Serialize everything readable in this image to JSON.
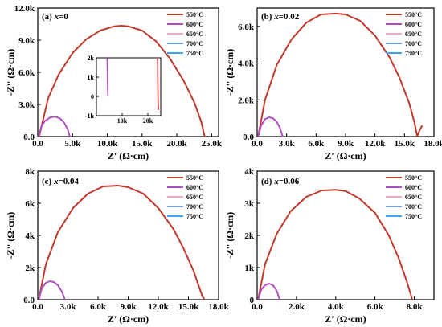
{
  "chart_data": [
    {
      "type": "line",
      "panel_label": "(a)",
      "panel_var": "x",
      "panel_eq": "=0",
      "xlabel": "Z' (Ω·cm)",
      "ylabel": "-Z'' (Ω·cm)",
      "xlim": [
        0,
        26000
      ],
      "ylim": [
        0,
        12000
      ],
      "x_ticks": [
        0,
        5000,
        10000,
        15000,
        20000,
        25000
      ],
      "x_tick_labels": [
        "0.0",
        "5.0k",
        "10.0k",
        "15.0k",
        "20.0k",
        "25.0k"
      ],
      "y_ticks": [
        0,
        3000,
        6000,
        9000,
        12000
      ],
      "y_tick_labels": [
        "0.0",
        "3.0k",
        "6.0k",
        "9.0k",
        "12.0k"
      ],
      "legend_position": "top-right",
      "series": [
        {
          "name": "550°C",
          "color": "#c0392b",
          "x": [
            200,
            1500,
            3000,
            5000,
            7000,
            9000,
            11000,
            12000,
            13000,
            15000,
            17000,
            19000,
            21000,
            22500,
            23500,
            24000
          ],
          "y": [
            0,
            3600,
            5800,
            7800,
            9100,
            9900,
            10300,
            10350,
            10300,
            9900,
            8900,
            7300,
            5200,
            3200,
            1400,
            0
          ]
        },
        {
          "name": "600°C",
          "color": "#b04fc4",
          "x": [
            100,
            500,
            1000,
            1800,
            2500,
            3200,
            3800,
            4300,
            4600
          ],
          "y": [
            0,
            900,
            1450,
            1800,
            1850,
            1700,
            1300,
            700,
            0
          ]
        },
        {
          "name": "650°C",
          "color": "#f4a6c8",
          "x": [],
          "y": []
        },
        {
          "name": "700°C",
          "color": "#6aa0e0",
          "x": [],
          "y": []
        },
        {
          "name": "750°C",
          "color": "#3aa8f0",
          "x": [],
          "y": []
        }
      ],
      "inset": {
        "xlim": [
          0,
          25000
        ],
        "ylim": [
          -1000,
          2000
        ],
        "x_ticks": [
          10000,
          20000
        ],
        "x_tick_labels": [
          "10k",
          "20k"
        ],
        "y_ticks": [
          -1000,
          0,
          1000,
          2000
        ],
        "y_tick_labels": [
          "-1k",
          "0",
          "1k",
          "2k"
        ],
        "series": [
          {
            "name": "600°C",
            "color": "#b04fc4",
            "x": [
              4200,
              4300,
              4400,
              4500
            ],
            "y": [
              2000,
              900,
              300,
              0
            ]
          },
          {
            "name": "550°C",
            "color": "#c0392b",
            "x": [
              23800,
              23850,
              23900,
              23950,
              24000,
              24100
            ],
            "y": [
              2000,
              1200,
              500,
              0,
              -400,
              -700
            ]
          }
        ]
      }
    },
    {
      "type": "line",
      "panel_label": "(b)",
      "panel_var": "x",
      "panel_eq": "=0.02",
      "xlabel": "Z' (Ω·cm)",
      "ylabel": "-Z'' (Ω·cm)",
      "xlim": [
        0,
        18000
      ],
      "ylim": [
        0,
        7000
      ],
      "x_ticks": [
        0,
        3000,
        6000,
        9000,
        12000,
        15000,
        18000
      ],
      "x_tick_labels": [
        "0.0",
        "3.0k",
        "6.0k",
        "9.0k",
        "12.0k",
        "15.0k",
        "18.0k"
      ],
      "y_ticks": [
        0,
        2000,
        4000,
        6000
      ],
      "y_tick_labels": [
        "0.0",
        "2.0k",
        "4.0k",
        "6.0k"
      ],
      "legend_position": "top-right",
      "series": [
        {
          "name": "550°C",
          "color": "#c0392b",
          "x": [
            100,
            800,
            2000,
            3500,
            5000,
            6500,
            8000,
            9000,
            10500,
            12000,
            13500,
            14500,
            15500,
            16000,
            16300,
            16500,
            16800
          ],
          "y": [
            0,
            2000,
            3900,
            5300,
            6200,
            6650,
            6700,
            6650,
            6300,
            5500,
            4300,
            3200,
            1800,
            800,
            0,
            300,
            600
          ]
        },
        {
          "name": "600°C",
          "color": "#b04fc4",
          "x": [
            100,
            400,
            800,
            1200,
            1600,
            2000,
            2300,
            2600
          ],
          "y": [
            0,
            600,
            950,
            1050,
            1000,
            800,
            500,
            0
          ]
        },
        {
          "name": "650°C",
          "color": "#f4a6c8",
          "x": [],
          "y": []
        },
        {
          "name": "700°C",
          "color": "#6aa0e0",
          "x": [],
          "y": []
        },
        {
          "name": "750°C",
          "color": "#3aa8f0",
          "x": [],
          "y": []
        }
      ]
    },
    {
      "type": "line",
      "panel_label": "(c)",
      "panel_var": "x",
      "panel_eq": "=0.04",
      "xlabel": "Z' (Ω·cm)",
      "ylabel": "-Z'' (Ω·cm)",
      "xlim": [
        0,
        18000
      ],
      "ylim": [
        0,
        8000
      ],
      "x_ticks": [
        0,
        3000,
        6000,
        9000,
        12000,
        15000,
        18000
      ],
      "x_tick_labels": [
        "0.0",
        "3.0k",
        "6.0k",
        "9.0k",
        "12.0k",
        "15.0k",
        "18.0k"
      ],
      "y_ticks": [
        0,
        2000,
        4000,
        6000,
        8000
      ],
      "y_tick_labels": [
        "0.0",
        "2k",
        "4k",
        "6k",
        "8k"
      ],
      "legend_position": "top-right",
      "series": [
        {
          "name": "550°C",
          "color": "#c0392b",
          "x": [
            100,
            800,
            2000,
            3500,
            5000,
            6500,
            8000,
            9000,
            10500,
            12000,
            13500,
            14500,
            15500,
            16000,
            16400,
            16600
          ],
          "y": [
            0,
            2200,
            4200,
            5700,
            6600,
            7050,
            7100,
            7000,
            6600,
            5700,
            4400,
            3200,
            1800,
            900,
            200,
            0
          ]
        },
        {
          "name": "600°C",
          "color": "#b04fc4",
          "x": [
            100,
            400,
            800,
            1200,
            1600,
            2000,
            2400,
            2700
          ],
          "y": [
            0,
            700,
            1050,
            1150,
            1100,
            900,
            500,
            0
          ]
        },
        {
          "name": "650°C",
          "color": "#f4a6c8",
          "x": [],
          "y": []
        },
        {
          "name": "700°C",
          "color": "#6aa0e0",
          "x": [],
          "y": []
        },
        {
          "name": "750°C",
          "color": "#3aa8f0",
          "x": [],
          "y": []
        }
      ]
    },
    {
      "type": "line",
      "panel_label": "(d)",
      "panel_var": "x",
      "panel_eq": "=0.06",
      "xlabel": "Z' (Ω·cm)",
      "ylabel": "-Z'' (Ω·cm)",
      "xlim": [
        0,
        9000
      ],
      "ylim": [
        0,
        4000
      ],
      "x_ticks": [
        0,
        2000,
        4000,
        6000,
        8000
      ],
      "x_tick_labels": [
        "0.0",
        "2.0k",
        "4.0k",
        "6.0k",
        "8.0k"
      ],
      "y_ticks": [
        0,
        1000,
        2000,
        3000,
        4000
      ],
      "y_tick_labels": [
        "0",
        "1k",
        "2k",
        "3k",
        "4k"
      ],
      "legend_position": "top-right",
      "series": [
        {
          "name": "550°C",
          "color": "#c0392b",
          "x": [
            50,
            400,
            1000,
            1700,
            2500,
            3300,
            4000,
            4500,
            5200,
            6000,
            6700,
            7200,
            7600,
            7800,
            7900
          ],
          "y": [
            0,
            1100,
            2050,
            2750,
            3200,
            3400,
            3420,
            3380,
            3150,
            2700,
            2000,
            1300,
            600,
            200,
            0
          ]
        },
        {
          "name": "600°C",
          "color": "#b04fc4",
          "x": [
            50,
            200,
            400,
            600,
            800,
            1000,
            1150
          ],
          "y": [
            0,
            300,
            450,
            500,
            450,
            280,
            0
          ]
        },
        {
          "name": "650°C",
          "color": "#f4a6c8",
          "x": [],
          "y": []
        },
        {
          "name": "700°C",
          "color": "#6aa0e0",
          "x": [],
          "y": []
        },
        {
          "name": "750°C",
          "color": "#3aa8f0",
          "x": [],
          "y": []
        }
      ]
    }
  ]
}
